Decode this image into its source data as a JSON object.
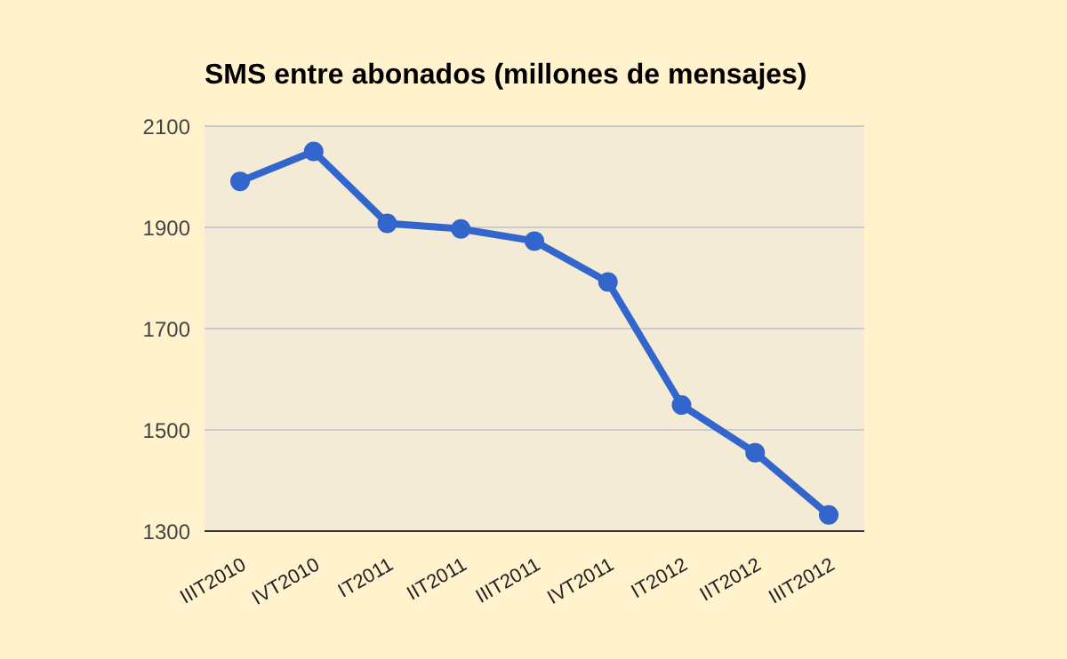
{
  "chart_data": {
    "type": "line",
    "title": "SMS entre abonados (millones de mensajes)",
    "categories": [
      "IIIT2010",
      "IVT2010",
      "IT2011",
      "IIT2011",
      "IIIT2011",
      "IVT2011",
      "IT2012",
      "IIT2012",
      "IIIT2012"
    ],
    "series": [
      {
        "color": "#3366cc",
        "values": [
          1991,
          2050,
          1908,
          1897,
          1873,
          1792,
          1549,
          1455,
          1332
        ]
      }
    ],
    "ylim": [
      1300,
      2100
    ],
    "yticks": [
      1300,
      1500,
      1700,
      1900,
      2100
    ],
    "grid": "y",
    "marker": "circle"
  }
}
